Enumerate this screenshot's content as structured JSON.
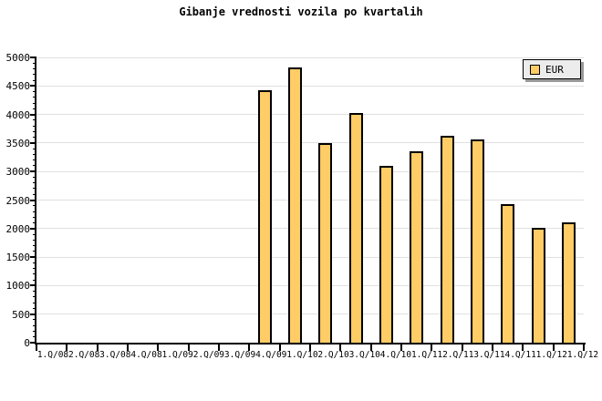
{
  "chart_data": {
    "type": "bar",
    "title": "Gibanje vrednosti vozila po kvartalih",
    "categories": [
      "1.Q/08",
      "2.Q/08",
      "3.Q/08",
      "4.Q/08",
      "1.Q/09",
      "2.Q/09",
      "3.Q/09",
      "4.Q/09",
      "1.Q/10",
      "2.Q/10",
      "3.Q/10",
      "4.Q/10",
      "1.Q/11",
      "2.Q/11",
      "3.Q/11",
      "4.Q/11",
      "1.Q/12",
      "1.Q/12"
    ],
    "series": [
      {
        "name": "EUR",
        "values": [
          null,
          null,
          null,
          null,
          null,
          null,
          null,
          4430,
          4820,
          3500,
          4020,
          3100,
          3360,
          3620,
          3560,
          2430,
          2020,
          2110
        ]
      }
    ],
    "xlabel": "",
    "ylabel": "",
    "ylim": [
      0,
      5000
    ],
    "ytick_step": 500,
    "ytick_minor_step": 100,
    "grid": true,
    "legend_position": "top-right",
    "colors": {
      "bar_fill": "#FFCC66",
      "bar_border": "#000000",
      "grid": "#E0E0E0",
      "axis": "#000000",
      "text": "#000000",
      "legend_bg": "#ECECEC",
      "legend_shadow": "#999999",
      "background": "#FFFFFF"
    }
  }
}
